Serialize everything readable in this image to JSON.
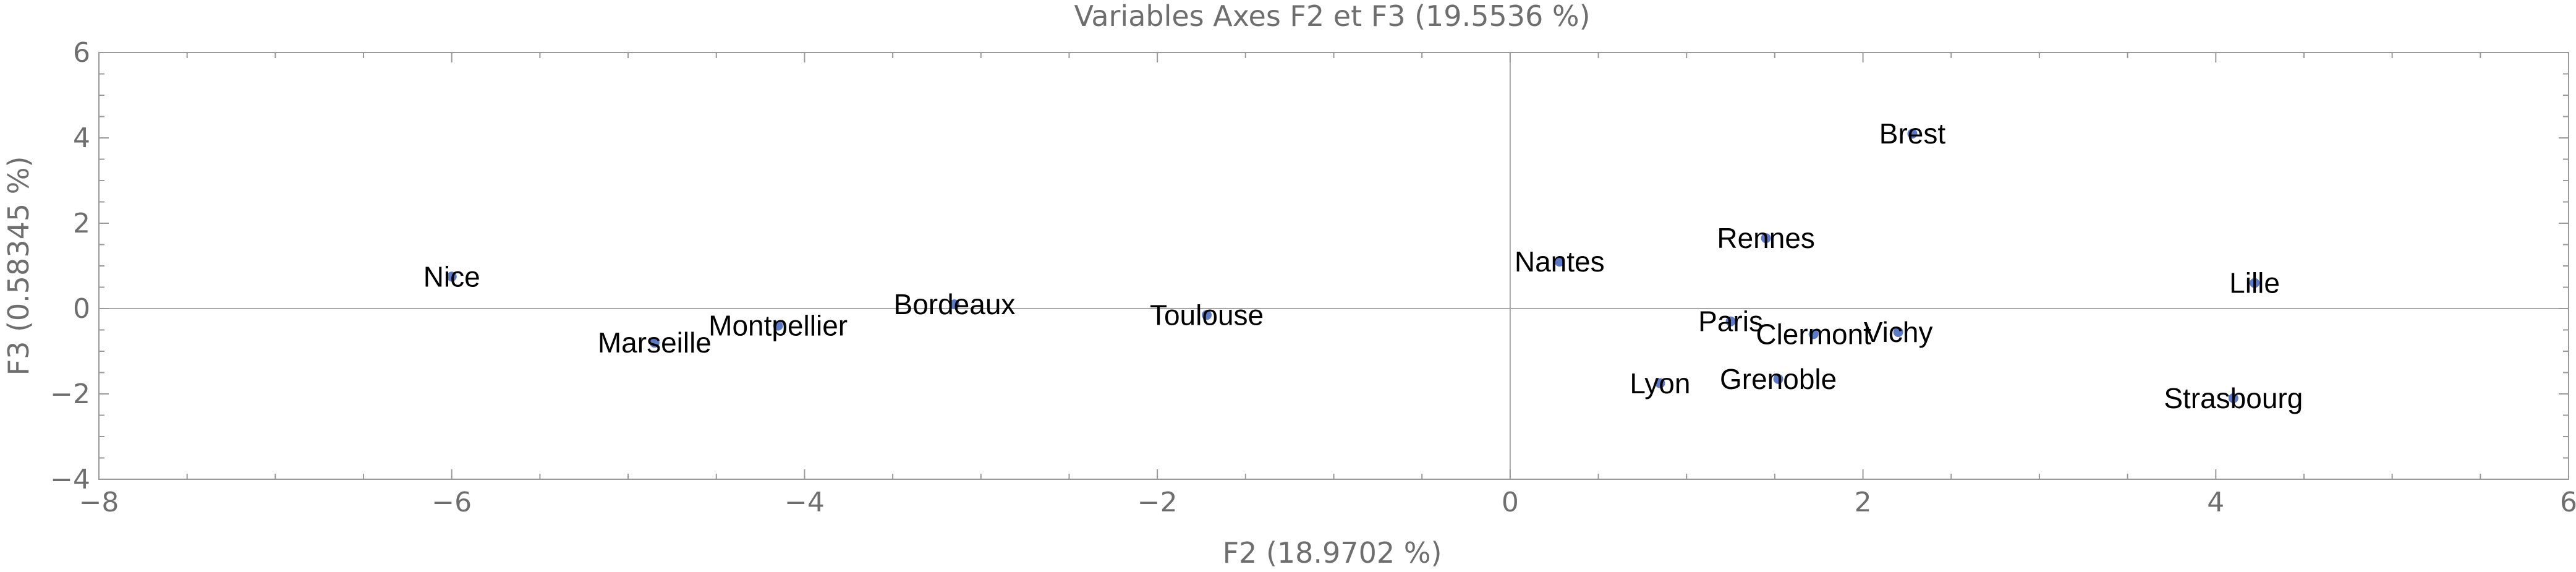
{
  "chart_data": {
    "type": "scatter",
    "title": "Variables Axes F2 et F3 (19.5536 %)",
    "xlabel": "F2 (18.9702 %)",
    "ylabel": "F3 (0.58345 %)",
    "xlim": [
      -8,
      6
    ],
    "ylim": [
      -4,
      6
    ],
    "xticks": [
      -8,
      -6,
      -4,
      -2,
      0,
      2,
      4,
      6
    ],
    "yticks": [
      -4,
      -2,
      0,
      2,
      4,
      6
    ],
    "xtick_labels": [
      "−8",
      "−6",
      "−4",
      "−2",
      "0",
      "2",
      "4",
      "6"
    ],
    "ytick_labels": [
      "−4",
      "−2",
      "0",
      "2",
      "4",
      "6"
    ],
    "grid": false,
    "point_color": "#5b7bc9",
    "points": [
      {
        "label": "Nice",
        "x": -6.0,
        "y": 0.75
      },
      {
        "label": "Marseille",
        "x": -4.85,
        "y": -0.8
      },
      {
        "label": "Montpellier",
        "x": -4.15,
        "y": -0.4
      },
      {
        "label": "Bordeaux",
        "x": -3.15,
        "y": 0.1
      },
      {
        "label": "Toulouse",
        "x": -1.72,
        "y": -0.15
      },
      {
        "label": "Nantes",
        "x": 0.28,
        "y": 1.1
      },
      {
        "label": "Rennes",
        "x": 1.45,
        "y": 1.65
      },
      {
        "label": "Brest",
        "x": 2.28,
        "y": 4.1
      },
      {
        "label": "Paris",
        "x": 1.25,
        "y": -0.3
      },
      {
        "label": "Clermont",
        "x": 1.72,
        "y": -0.6
      },
      {
        "label": "Vichy",
        "x": 2.2,
        "y": -0.55
      },
      {
        "label": "Lyon",
        "x": 0.85,
        "y": -1.75
      },
      {
        "label": "Grenoble",
        "x": 1.52,
        "y": -1.65
      },
      {
        "label": "Lille",
        "x": 4.22,
        "y": 0.6
      },
      {
        "label": "Strasbourg",
        "x": 4.1,
        "y": -2.1
      }
    ]
  }
}
